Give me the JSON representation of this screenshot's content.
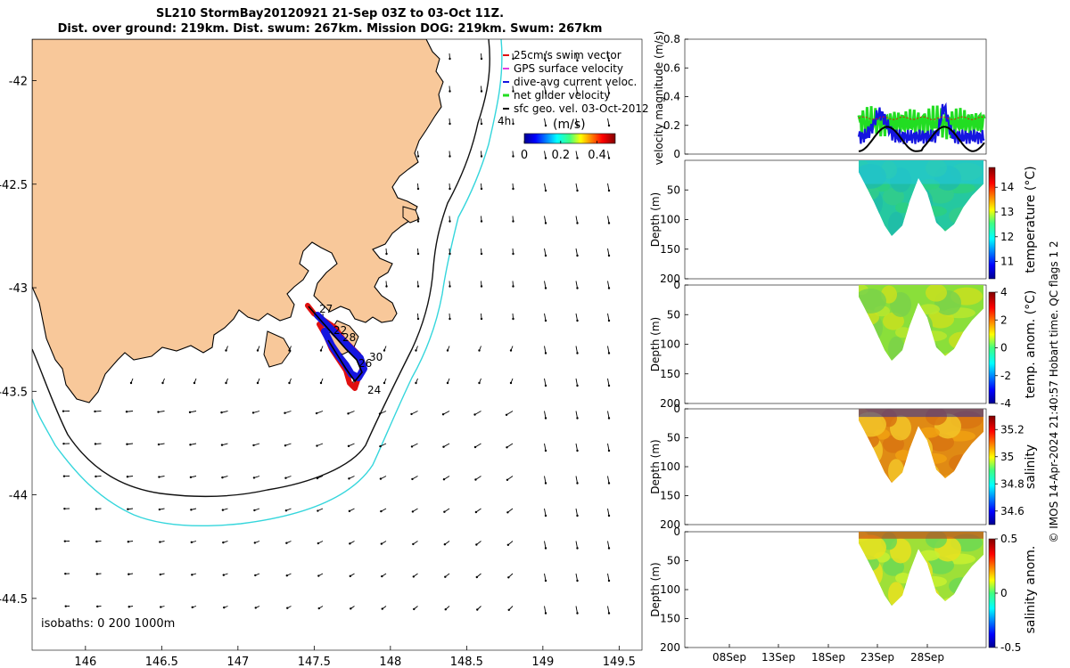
{
  "title_line1": "SL210 StormBay20120921 21-Sep 03Z to 03-Oct 11Z.",
  "title_line2": "Dist. over ground: 219km. Dist. swum: 267km. Mission DOG: 219km. Swum: 267km",
  "footer_text": "© IMOS 14-Apr-2024 21:40:57 Hobart time. QC flags 1  2",
  "chart_data": [
    {
      "type": "map",
      "lon_ticks": [
        "146",
        "146.5",
        "147",
        "147.5",
        "148",
        "148.5",
        "149",
        "149.5"
      ],
      "lat_ticks": [
        "-42",
        "-42.5",
        "-43",
        "-43.5",
        "-44",
        "-44.5"
      ],
      "xlim": [
        145.65,
        149.65
      ],
      "ylim": [
        -44.75,
        -41.8
      ],
      "legend": [
        "25cm/s swim vector",
        "GPS surface velocity",
        "dive-avg current veloc.",
        "net glider velocity",
        "sfc geo. vel. 03-Oct-2012"
      ],
      "legend_tail": "4h",
      "colorbar_title": "(m/s)",
      "colorbar_ticks": [
        "0",
        "0.2",
        "0.4"
      ],
      "colorbar_range": [
        0,
        0.5
      ],
      "track_day_labels": [
        "27",
        "28",
        "22",
        "30",
        "26",
        "24"
      ],
      "isobaths_label": "isobaths: 0   200  1000m",
      "colors": {
        "land": "#f8c89a",
        "isobath_200": "#111111",
        "isobath_1000": "#35d6dc",
        "track": "#e01010",
        "dive": "#1010e0"
      }
    },
    {
      "type": "line",
      "ylabel": "velocity magnitude (m/s)",
      "y_ticks": [
        "0",
        "0.2",
        "0.4",
        "0.6",
        "0.8"
      ],
      "ylim": [
        0,
        0.8
      ],
      "series": [
        {
          "name": "net glider velocity",
          "color": "#22dd22"
        },
        {
          "name": "dive-avg current veloc.",
          "color": "#1515e0"
        },
        {
          "name": "sfc geo. vel.",
          "color": "#000000"
        }
      ]
    },
    {
      "type": "heatmap",
      "ylabel": "Depth (m)",
      "clabel": "temperature (°C)",
      "y_ticks": [
        "50",
        "100",
        "150",
        "200"
      ],
      "c_ticks": [
        "11",
        "12",
        "13",
        "14"
      ],
      "crange": [
        10.3,
        14.8
      ]
    },
    {
      "type": "heatmap",
      "ylabel": "Depth (m)",
      "clabel": "temp. anom. (°C)",
      "y_ticks": [
        "0",
        "50",
        "100",
        "150",
        "200"
      ],
      "c_ticks": [
        "-4",
        "-2",
        "0",
        "2",
        "4"
      ],
      "crange": [
        -4,
        4
      ]
    },
    {
      "type": "heatmap",
      "ylabel": "Depth (m)",
      "clabel": "salinity",
      "y_ticks": [
        "0",
        "50",
        "100",
        "150",
        "200"
      ],
      "c_ticks": [
        "34.6",
        "34.8",
        "35",
        "35.2"
      ],
      "crange": [
        34.5,
        35.3
      ]
    },
    {
      "type": "heatmap",
      "ylabel": "Depth (m)",
      "clabel": "salinity anom.",
      "y_ticks": [
        "0",
        "50",
        "100",
        "150",
        "200"
      ],
      "c_ticks": [
        "-0.5",
        "0",
        "0.5"
      ],
      "crange": [
        -0.5,
        0.5
      ]
    },
    {
      "type": "time_axis",
      "x_ticks": [
        "08Sep",
        "13Sep",
        "18Sep",
        "23Sep",
        "28Sep"
      ]
    }
  ]
}
